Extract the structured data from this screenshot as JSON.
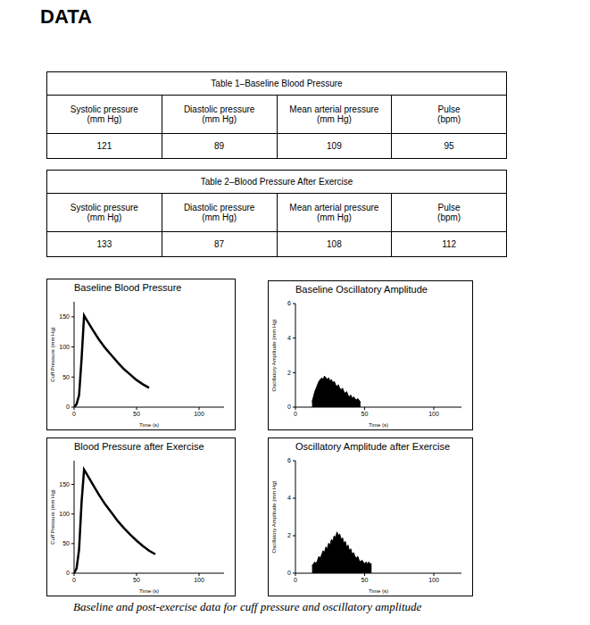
{
  "header": {
    "title": "DATA"
  },
  "tables": [
    {
      "title": "Table 1–Baseline Blood Pressure",
      "columns": [
        "Systolic pressure\n(mm Hg)",
        "Diastolic pressure\n(mm Hg)",
        "Mean arterial pressure\n(mm Hg)",
        "Pulse\n(bpm)"
      ],
      "rows": [
        [
          121,
          89,
          109,
          95
        ]
      ]
    },
    {
      "title": "Table 2–Blood Pressure After Exercise",
      "columns": [
        "Systolic pressure\n(mm Hg)",
        "Diastolic pressure\n(mm Hg)",
        "Mean arterial pressure\n(mm Hg)",
        "Pulse\n(bpm)"
      ],
      "rows": [
        [
          133,
          87,
          108,
          112
        ]
      ]
    }
  ],
  "chart_data": [
    {
      "type": "line",
      "title": "Baseline Blood Pressure",
      "x_label": "Time (s)",
      "y_label": "Cuff Pressure (mm Hg)",
      "color": "#000000",
      "x": [
        0,
        2,
        4,
        6,
        8,
        10,
        15,
        20,
        25,
        30,
        35,
        40,
        45,
        50,
        55,
        60
      ],
      "values": [
        0,
        5,
        20,
        80,
        152,
        145,
        128,
        112,
        98,
        86,
        74,
        63,
        54,
        45,
        38,
        32
      ],
      "xlim": [
        0,
        120
      ],
      "xticks": [
        0,
        50,
        100
      ],
      "ylim": [
        0,
        175
      ],
      "yticks": [
        0,
        50,
        100,
        150
      ]
    },
    {
      "type": "area",
      "title": "Baseline Oscillatory Amplitude",
      "x_label": "Time (s)",
      "y_label": "Oscillatory Amplitude (mm Hg)",
      "color": "#000000",
      "x": [
        12,
        13,
        14,
        15,
        16,
        17,
        18,
        19,
        20,
        21,
        22,
        23,
        24,
        25,
        26,
        27,
        28,
        29,
        30,
        31,
        32,
        33,
        34,
        35,
        36,
        37,
        38,
        39,
        40,
        41,
        42,
        43,
        44,
        45,
        46,
        47
      ],
      "values": [
        0.3,
        0.6,
        0.9,
        1.1,
        1.3,
        1.5,
        1.6,
        1.7,
        1.6,
        1.8,
        1.7,
        1.6,
        1.7,
        1.5,
        1.6,
        1.4,
        1.5,
        1.3,
        1.2,
        1.3,
        1.1,
        1.0,
        1.1,
        0.9,
        0.8,
        0.9,
        0.7,
        0.6,
        0.7,
        0.5,
        0.6,
        0.5,
        0.4,
        0.5,
        0.4,
        0.3
      ],
      "xlim": [
        0,
        120
      ],
      "xticks": [
        0,
        50,
        100
      ],
      "ylim": [
        0,
        6
      ],
      "yticks": [
        0,
        2,
        4,
        6
      ]
    },
    {
      "type": "line",
      "title": "Blood Pressure after Exercise",
      "x_label": "Time (s)",
      "y_label": "Cuff Pressure (mm Hg)",
      "color": "#000000",
      "x": [
        0,
        2,
        4,
        6,
        8,
        10,
        15,
        20,
        25,
        30,
        35,
        40,
        45,
        50,
        55,
        60,
        65
      ],
      "values": [
        0,
        8,
        40,
        120,
        175,
        168,
        150,
        132,
        116,
        102,
        88,
        76,
        65,
        55,
        46,
        38,
        32
      ],
      "xlim": [
        0,
        120
      ],
      "xticks": [
        0,
        50,
        100
      ],
      "ylim": [
        0,
        190
      ],
      "yticks": [
        0,
        50,
        100,
        150
      ]
    },
    {
      "type": "area",
      "title": "Oscillatory Amplitude after Exercise",
      "x_label": "Time (s)",
      "y_label": "Oscillatory Amplitude (mm Hg)",
      "color": "#000000",
      "x": [
        12,
        13,
        14,
        15,
        16,
        17,
        18,
        19,
        20,
        21,
        22,
        23,
        24,
        25,
        26,
        27,
        28,
        29,
        30,
        31,
        32,
        33,
        34,
        35,
        36,
        37,
        38,
        39,
        40,
        41,
        42,
        43,
        44,
        45,
        46,
        47,
        48,
        49,
        50,
        51,
        52,
        53,
        54,
        55
      ],
      "values": [
        0.4,
        0.5,
        0.6,
        0.5,
        0.7,
        0.9,
        0.8,
        1.0,
        1.2,
        1.1,
        1.4,
        1.3,
        1.6,
        1.5,
        1.8,
        1.7,
        2.0,
        1.9,
        2.2,
        2.0,
        2.1,
        1.8,
        1.9,
        1.6,
        1.7,
        1.4,
        1.5,
        1.2,
        1.3,
        1.0,
        1.1,
        0.9,
        0.8,
        0.9,
        0.7,
        0.6,
        0.7,
        0.6,
        0.5,
        0.6,
        0.5,
        0.6,
        0.5,
        0.5
      ],
      "xlim": [
        0,
        120
      ],
      "xticks": [
        0,
        50,
        100
      ],
      "ylim": [
        0,
        6
      ],
      "yticks": [
        0,
        2,
        4,
        6
      ]
    }
  ],
  "caption": "Baseline and post-exercise data for cuff pressure and oscillatory amplitude"
}
